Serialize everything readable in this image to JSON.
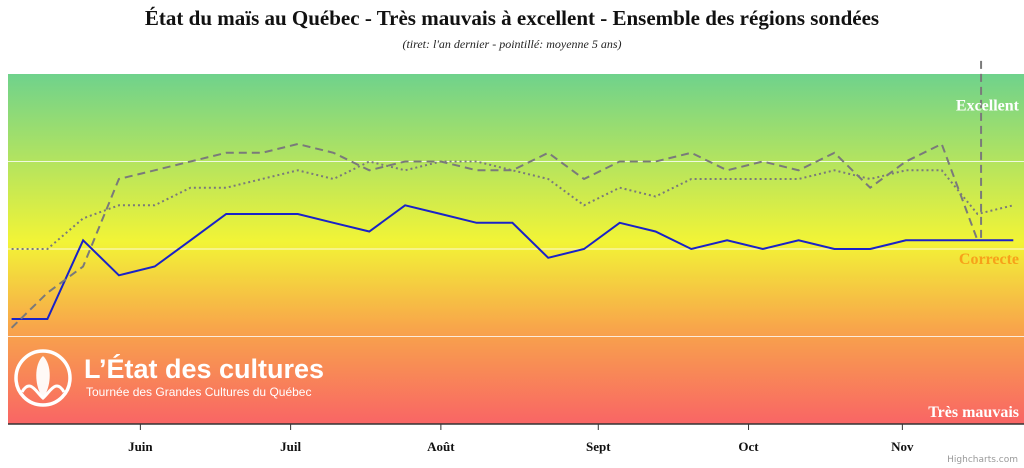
{
  "chart_data": {
    "type": "line",
    "title": "État du maïs au Québec - Très mauvais à excellent - Ensemble des régions sondées",
    "subtitle": "(tiret: l'an dernier - pointillé: moyenne 5 ans)",
    "xlabel": "",
    "ylabel": "",
    "x": [
      0,
      1,
      2,
      3,
      4,
      5,
      6,
      7,
      8,
      9,
      10,
      11,
      12,
      13,
      14,
      15,
      16,
      17,
      18,
      19,
      20,
      21,
      22,
      23,
      24,
      25,
      26,
      27,
      28
    ],
    "xlim": [
      -0.1,
      28.3
    ],
    "ylim": [
      0,
      4
    ],
    "ticks": [
      {
        "pos": 3.6,
        "label": "Juin"
      },
      {
        "pos": 7.8,
        "label": "Juil"
      },
      {
        "pos": 12.0,
        "label": "Août"
      },
      {
        "pos": 16.4,
        "label": "Sept"
      },
      {
        "pos": 20.6,
        "label": "Oct"
      },
      {
        "pos": 24.9,
        "label": "Nov"
      }
    ],
    "band_labels": [
      {
        "label": "Excellent",
        "y": 3.65,
        "color": "#ffffff"
      },
      {
        "label": "Correcte",
        "y": 1.9,
        "color": "#f7a11a"
      },
      {
        "label": "Très mauvais",
        "y": 0.15,
        "color": "#ffffff"
      }
    ],
    "gridlines": [
      1,
      2,
      3
    ],
    "series": [
      {
        "style": "solid",
        "color": "#1a22c8",
        "values": [
          1.2,
          1.2,
          2.1,
          1.7,
          1.8,
          2.1,
          2.4,
          2.4,
          2.4,
          2.3,
          2.2,
          2.5,
          2.4,
          2.3,
          2.3,
          1.9,
          2.0,
          2.3,
          2.2,
          2.0,
          2.1,
          2.0,
          2.1,
          2.0,
          2.0,
          2.1,
          2.1,
          2.1,
          2.1
        ]
      },
      {
        "style": "dashed",
        "color": "#7a7a7a",
        "values": [
          1.1,
          1.5,
          1.8,
          2.8,
          2.9,
          3.0,
          3.1,
          3.1,
          3.2,
          3.1,
          2.9,
          3.0,
          3.0,
          2.9,
          2.9,
          3.1,
          2.8,
          3.0,
          3.0,
          3.1,
          2.9,
          3.0,
          2.9,
          3.1,
          2.7,
          3.0,
          3.2,
          2.1,
          null
        ],
        "peak_spike": {
          "x": 27.1,
          "y_top": 4.15,
          "y_bottom": 2.1
        }
      },
      {
        "style": "dotted",
        "color": "#7a7a7a",
        "values": [
          2.0,
          2.0,
          2.35,
          2.5,
          2.5,
          2.7,
          2.7,
          2.8,
          2.9,
          2.8,
          3.0,
          2.9,
          3.0,
          3.0,
          2.9,
          2.8,
          2.5,
          2.7,
          2.6,
          2.8,
          2.8,
          2.8,
          2.8,
          2.9,
          2.8,
          2.9,
          2.9,
          2.4,
          2.5
        ]
      }
    ]
  },
  "watermark": {
    "title": "L’État des cultures",
    "subtitle": "Tournée des Grandes Cultures du Québec"
  },
  "credits": "Highcharts.com"
}
